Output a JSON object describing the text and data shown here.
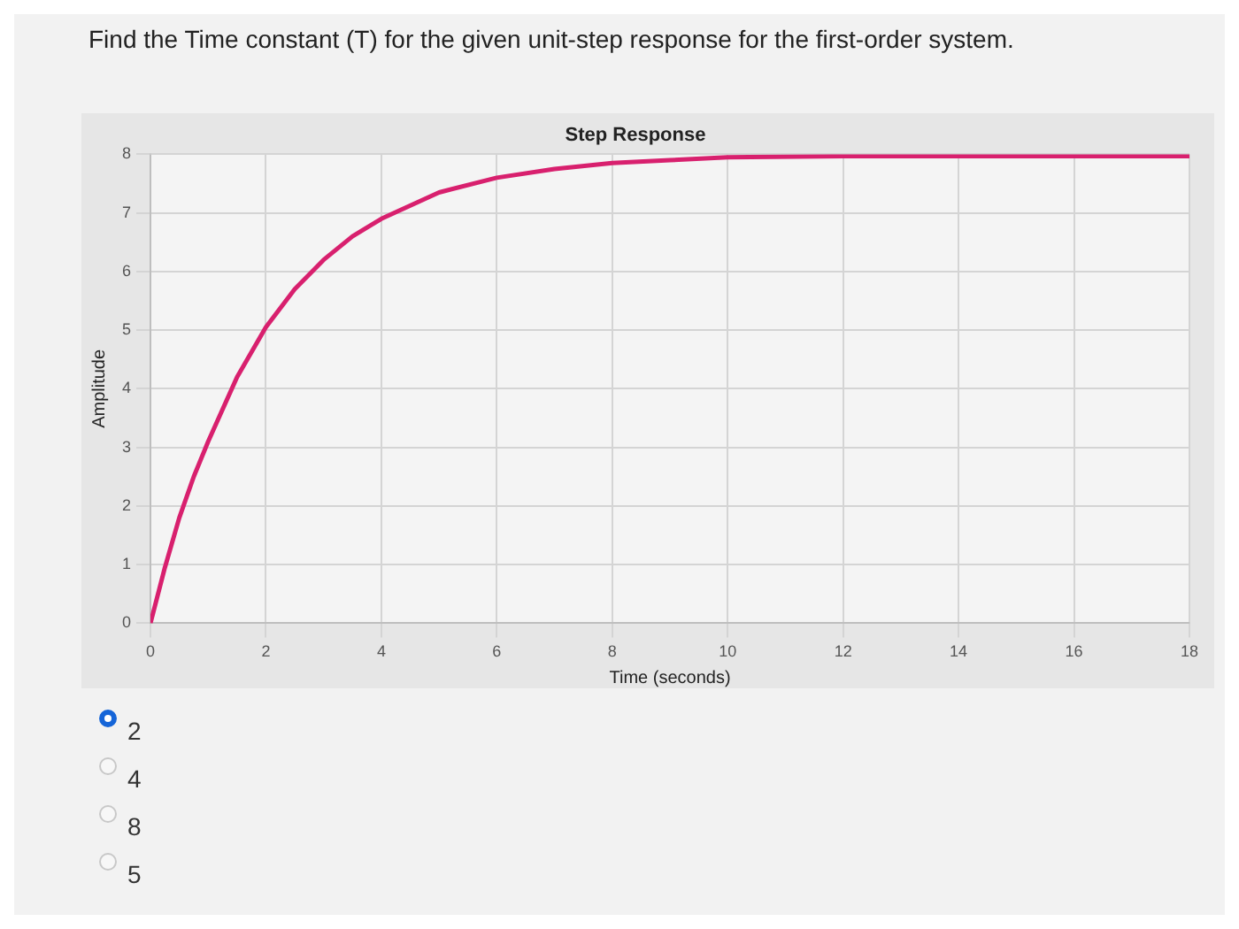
{
  "chart_data": {
    "type": "line",
    "title": "Step Response",
    "xlabel": "Time (seconds)",
    "ylabel": "Amplitude",
    "annotations": [
      "Find the Time constant (T) for the given unit-step response for the first-order system.",
      "2",
      "4",
      "8",
      "5"
    ],
    "x": [
      0,
      0.25,
      0.5,
      0.75,
      1,
      1.5,
      2,
      2.5,
      3,
      3.5,
      4,
      5,
      6,
      7,
      8,
      9,
      10,
      12,
      14,
      16,
      18
    ],
    "series": [
      {
        "color": "#d8206e",
        "values": [
          0,
          0.95,
          1.8,
          2.5,
          3.1,
          4.2,
          5.05,
          5.7,
          6.2,
          6.6,
          6.9,
          7.35,
          7.6,
          7.75,
          7.85,
          7.9,
          7.95,
          7.97,
          7.97,
          7.97,
          7.97
        ]
      }
    ],
    "xlim": [
      0,
      18
    ],
    "xticks": [
      0,
      2,
      4,
      6,
      8,
      10,
      12,
      14,
      16,
      18
    ],
    "ylim": [
      0,
      8
    ],
    "yticks": [
      0,
      1,
      2,
      3,
      4,
      5,
      6,
      7,
      8
    ],
    "grid": true,
    "legend": false,
    "marker": "none",
    "line_style": "solid"
  }
}
